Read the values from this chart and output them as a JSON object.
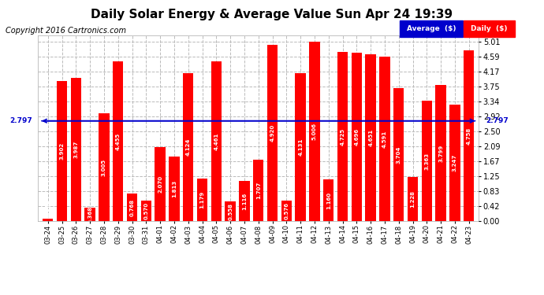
{
  "title": "Daily Solar Energy & Average Value Sun Apr 24 19:39",
  "copyright": "Copyright 2016 Cartronics.com",
  "categories": [
    "03-24",
    "03-25",
    "03-26",
    "03-27",
    "03-28",
    "03-29",
    "03-30",
    "03-31",
    "04-01",
    "04-02",
    "04-03",
    "04-04",
    "04-05",
    "04-06",
    "04-07",
    "04-08",
    "04-09",
    "04-10",
    "04-11",
    "04-12",
    "04-13",
    "04-14",
    "04-15",
    "04-16",
    "04-17",
    "04-18",
    "04-19",
    "04-20",
    "04-21",
    "04-22",
    "04-23"
  ],
  "values": [
    0.073,
    3.902,
    3.987,
    0.368,
    3.005,
    4.455,
    0.768,
    0.57,
    2.07,
    1.813,
    4.124,
    1.179,
    4.461,
    0.558,
    1.116,
    1.707,
    4.92,
    0.576,
    4.131,
    5.006,
    1.16,
    4.725,
    4.696,
    4.651,
    4.591,
    3.704,
    1.228,
    3.363,
    3.799,
    3.247,
    4.758
  ],
  "average": 2.797,
  "bar_color": "#ff0000",
  "avg_line_color": "#0000cc",
  "background_color": "#ffffff",
  "plot_bg_color": "#ffffff",
  "grid_color": "#bbbbbb",
  "yticks": [
    0.0,
    0.42,
    0.83,
    1.25,
    1.67,
    2.09,
    2.5,
    2.92,
    3.34,
    3.75,
    4.17,
    4.59,
    5.01
  ],
  "ylim": [
    0,
    5.18
  ],
  "legend_avg_color": "#0000cc",
  "legend_daily_color": "#ff0000",
  "title_fontsize": 11,
  "copyright_fontsize": 7,
  "bar_label_fontsize": 5,
  "tick_fontsize": 7,
  "xtick_fontsize": 6
}
